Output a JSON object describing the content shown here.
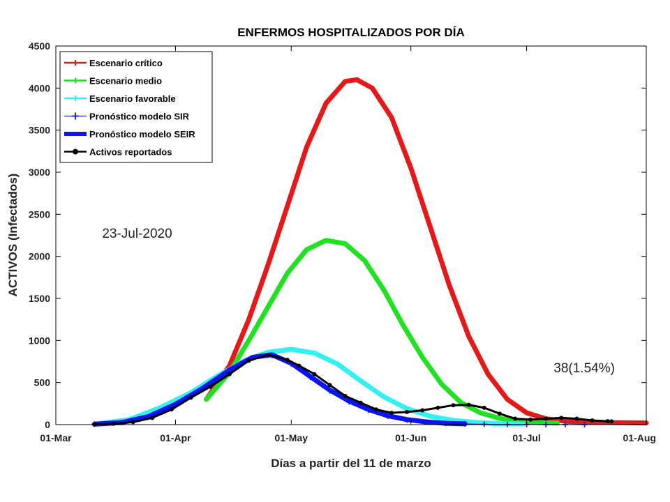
{
  "chart_data": {
    "type": "line",
    "title": "ENFERMOS HOSPITALIZADOS POR DÍA",
    "xlabel": "Días a partir del 11 de marzo",
    "ylabel": "ACTIVOS (Infectados)",
    "xlim": [
      "2020-03-01",
      "2020-08-01"
    ],
    "ylim": [
      0,
      4500
    ],
    "x_ticks": [
      {
        "date": "2020-03-01",
        "label": "01-Mar"
      },
      {
        "date": "2020-04-01",
        "label": "01-Apr"
      },
      {
        "date": "2020-05-01",
        "label": "01-May"
      },
      {
        "date": "2020-06-01",
        "label": "01-Jun"
      },
      {
        "date": "2020-07-01",
        "label": "01-Jul"
      },
      {
        "date": "2020-08-01",
        "label": "01-Aug"
      }
    ],
    "y_ticks": [
      0,
      500,
      1000,
      1500,
      2000,
      2500,
      3000,
      3500,
      4000,
      4500
    ],
    "grid": false,
    "legend_position": "top-left",
    "annotations": [
      {
        "text": "23-Jul-2020",
        "date": "2020-03-13",
        "value": 2220
      },
      {
        "text": "38(1.54%)",
        "date": "2020-07-08",
        "value": 620
      }
    ],
    "series": [
      {
        "name": "Escenario crítico",
        "color": "#e41a1a",
        "style": "thick",
        "points": [
          [
            "2020-04-09",
            300
          ],
          [
            "2020-04-15",
            700
          ],
          [
            "2020-04-20",
            1250
          ],
          [
            "2020-04-25",
            1900
          ],
          [
            "2020-04-30",
            2600
          ],
          [
            "2020-05-05",
            3300
          ],
          [
            "2020-05-10",
            3820
          ],
          [
            "2020-05-15",
            4080
          ],
          [
            "2020-05-18",
            4100
          ],
          [
            "2020-05-22",
            4000
          ],
          [
            "2020-05-27",
            3650
          ],
          [
            "2020-06-01",
            3050
          ],
          [
            "2020-06-06",
            2350
          ],
          [
            "2020-06-11",
            1650
          ],
          [
            "2020-06-16",
            1050
          ],
          [
            "2020-06-21",
            600
          ],
          [
            "2020-06-26",
            300
          ],
          [
            "2020-07-01",
            140
          ],
          [
            "2020-07-06",
            70
          ],
          [
            "2020-07-11",
            40
          ],
          [
            "2020-07-16",
            30
          ],
          [
            "2020-07-21",
            25
          ],
          [
            "2020-07-26",
            22
          ],
          [
            "2020-08-01",
            20
          ]
        ]
      },
      {
        "name": "Escenario medio",
        "color": "#22e022",
        "style": "thick",
        "points": [
          [
            "2020-04-09",
            300
          ],
          [
            "2020-04-15",
            620
          ],
          [
            "2020-04-20",
            1000
          ],
          [
            "2020-04-25",
            1400
          ],
          [
            "2020-04-30",
            1800
          ],
          [
            "2020-05-05",
            2080
          ],
          [
            "2020-05-10",
            2190
          ],
          [
            "2020-05-15",
            2150
          ],
          [
            "2020-05-20",
            1950
          ],
          [
            "2020-05-25",
            1600
          ],
          [
            "2020-05-30",
            1180
          ],
          [
            "2020-06-04",
            800
          ],
          [
            "2020-06-09",
            480
          ],
          [
            "2020-06-14",
            260
          ],
          [
            "2020-06-19",
            140
          ],
          [
            "2020-06-24",
            75
          ],
          [
            "2020-06-29",
            40
          ],
          [
            "2020-07-04",
            25
          ],
          [
            "2020-07-09",
            18
          ]
        ]
      },
      {
        "name": "Escenario favorable",
        "color": "#35f0f0",
        "style": "thick",
        "points": [
          [
            "2020-03-11",
            5
          ],
          [
            "2020-03-20",
            60
          ],
          [
            "2020-03-28",
            200
          ],
          [
            "2020-04-05",
            380
          ],
          [
            "2020-04-12",
            580
          ],
          [
            "2020-04-19",
            760
          ],
          [
            "2020-04-25",
            860
          ],
          [
            "2020-05-01",
            895
          ],
          [
            "2020-05-07",
            850
          ],
          [
            "2020-05-13",
            720
          ],
          [
            "2020-05-19",
            520
          ],
          [
            "2020-05-25",
            330
          ],
          [
            "2020-05-31",
            190
          ],
          [
            "2020-06-06",
            100
          ],
          [
            "2020-06-12",
            50
          ],
          [
            "2020-06-18",
            25
          ],
          [
            "2020-06-24",
            12
          ],
          [
            "2020-06-30",
            8
          ]
        ]
      },
      {
        "name": "Pronóstico modelo SIR",
        "color": "#1a2ad8",
        "style": "plus",
        "points": [
          [
            "2020-03-11",
            5
          ],
          [
            "2020-03-18",
            25
          ],
          [
            "2020-03-25",
            90
          ],
          [
            "2020-04-01",
            230
          ],
          [
            "2020-04-08",
            420
          ],
          [
            "2020-04-15",
            640
          ],
          [
            "2020-04-21",
            790
          ],
          [
            "2020-04-26",
            820
          ],
          [
            "2020-05-01",
            720
          ],
          [
            "2020-05-06",
            560
          ],
          [
            "2020-05-11",
            400
          ],
          [
            "2020-05-16",
            270
          ],
          [
            "2020-05-21",
            170
          ],
          [
            "2020-05-26",
            100
          ],
          [
            "2020-05-31",
            55
          ],
          [
            "2020-06-05",
            30
          ],
          [
            "2020-06-10",
            15
          ],
          [
            "2020-06-15",
            8
          ],
          [
            "2020-06-20",
            4
          ],
          [
            "2020-06-26",
            2
          ],
          [
            "2020-07-01",
            1
          ],
          [
            "2020-07-06",
            0
          ],
          [
            "2020-07-11",
            0
          ],
          [
            "2020-07-16",
            0
          ]
        ]
      },
      {
        "name": "Pronóstico modelo SEIR",
        "color": "#0a14f0",
        "style": "thick",
        "points": [
          [
            "2020-03-11",
            5
          ],
          [
            "2020-03-18",
            25
          ],
          [
            "2020-03-25",
            95
          ],
          [
            "2020-04-01",
            240
          ],
          [
            "2020-04-08",
            430
          ],
          [
            "2020-04-15",
            650
          ],
          [
            "2020-04-21",
            800
          ],
          [
            "2020-04-26",
            830
          ],
          [
            "2020-05-01",
            730
          ],
          [
            "2020-05-06",
            570
          ],
          [
            "2020-05-11",
            410
          ],
          [
            "2020-05-16",
            280
          ],
          [
            "2020-05-21",
            180
          ],
          [
            "2020-05-26",
            105
          ],
          [
            "2020-05-31",
            60
          ],
          [
            "2020-06-05",
            32
          ],
          [
            "2020-06-10",
            16
          ],
          [
            "2020-06-15",
            9
          ]
        ]
      },
      {
        "name": "Activos reportados",
        "color": "#000000",
        "style": "dots",
        "points": [
          [
            "2020-03-11",
            3
          ],
          [
            "2020-03-16",
            10
          ],
          [
            "2020-03-21",
            30
          ],
          [
            "2020-03-26",
            80
          ],
          [
            "2020-03-31",
            180
          ],
          [
            "2020-04-05",
            320
          ],
          [
            "2020-04-10",
            450
          ],
          [
            "2020-04-15",
            600
          ],
          [
            "2020-04-20",
            760
          ],
          [
            "2020-04-25",
            830
          ],
          [
            "2020-04-30",
            770
          ],
          [
            "2020-05-03",
            700
          ],
          [
            "2020-05-07",
            600
          ],
          [
            "2020-05-11",
            470
          ],
          [
            "2020-05-15",
            340
          ],
          [
            "2020-05-19",
            260
          ],
          [
            "2020-05-23",
            180
          ],
          [
            "2020-05-27",
            140
          ],
          [
            "2020-05-31",
            150
          ],
          [
            "2020-06-04",
            170
          ],
          [
            "2020-06-08",
            200
          ],
          [
            "2020-06-12",
            230
          ],
          [
            "2020-06-16",
            235
          ],
          [
            "2020-06-20",
            200
          ],
          [
            "2020-06-24",
            130
          ],
          [
            "2020-06-28",
            70
          ],
          [
            "2020-07-02",
            60
          ],
          [
            "2020-07-06",
            70
          ],
          [
            "2020-07-10",
            80
          ],
          [
            "2020-07-14",
            70
          ],
          [
            "2020-07-18",
            50
          ],
          [
            "2020-07-22",
            40
          ],
          [
            "2020-07-23",
            38
          ]
        ]
      }
    ]
  }
}
